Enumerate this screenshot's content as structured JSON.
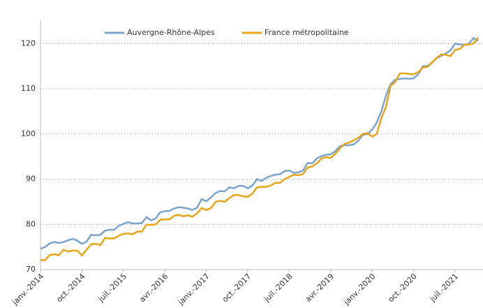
{
  "chart_data": {
    "type": "line",
    "categories": [
      "janv.-2014",
      null,
      null,
      null,
      null,
      null,
      null,
      null,
      null,
      "oct.-2014",
      null,
      null,
      null,
      null,
      null,
      null,
      null,
      null,
      "juil.-2015",
      null,
      null,
      null,
      null,
      null,
      null,
      null,
      null,
      "avr.-2016",
      null,
      null,
      null,
      null,
      null,
      null,
      null,
      null,
      "janv.-2017",
      null,
      null,
      null,
      null,
      null,
      null,
      null,
      null,
      "oct.-2017",
      null,
      null,
      null,
      null,
      null,
      null,
      null,
      null,
      "juil.-2018",
      null,
      null,
      null,
      null,
      null,
      null,
      null,
      null,
      "avr.-2019",
      null,
      null,
      null,
      null,
      null,
      null,
      null,
      null,
      "janv.-2020",
      null,
      null,
      null,
      null,
      null,
      null,
      null,
      null,
      "oct.-2020",
      null,
      null,
      null,
      null,
      null,
      null,
      null,
      null,
      "juil.-2021",
      null,
      null,
      null,
      null,
      null
    ],
    "series": [
      {
        "name": "Auvergne-Rhône-Alpes",
        "color": "#7ba3cc",
        "values": [
          74.6,
          75.0,
          75.8,
          76.1,
          75.9,
          76.1,
          76.5,
          76.8,
          76.4,
          75.7,
          76.2,
          77.7,
          77.6,
          77.7,
          78.6,
          78.8,
          78.8,
          79.7,
          80.1,
          80.5,
          80.2,
          80.2,
          80.3,
          81.6,
          80.9,
          81.3,
          82.7,
          82.9,
          83.0,
          83.5,
          83.8,
          83.7,
          83.5,
          83.2,
          83.7,
          85.6,
          85.1,
          86.0,
          86.9,
          87.4,
          87.3,
          88.2,
          88.0,
          88.5,
          88.5,
          88.0,
          88.6,
          90.0,
          89.6,
          90.3,
          90.7,
          91.0,
          91.1,
          91.8,
          91.9,
          91.4,
          91.5,
          91.9,
          93.6,
          93.5,
          94.6,
          95.1,
          95.4,
          95.5,
          96.2,
          97.3,
          97.5,
          97.5,
          97.7,
          98.5,
          99.8,
          100.0,
          101.0,
          102.5,
          105.0,
          108.5,
          111.0,
          112.0,
          112.2,
          112.3,
          112.2,
          112.3,
          113.2,
          115.0,
          115.0,
          115.8,
          116.8,
          117.3,
          117.8,
          118.5,
          120.0,
          119.8,
          119.7,
          120.0,
          121.2,
          120.6
        ]
      },
      {
        "name": "France métropolitaine",
        "color": "#e8a517",
        "values": [
          72.1,
          72.1,
          73.2,
          73.4,
          73.2,
          74.4,
          74.0,
          74.2,
          74.2,
          73.1,
          74.4,
          75.6,
          75.7,
          75.4,
          77.0,
          76.9,
          76.9,
          77.5,
          77.9,
          78.0,
          77.8,
          78.4,
          78.4,
          79.9,
          79.9,
          80.0,
          81.0,
          81.1,
          81.1,
          81.9,
          82.1,
          81.8,
          82.0,
          81.7,
          82.5,
          83.6,
          83.2,
          83.6,
          85.0,
          85.2,
          85.0,
          85.8,
          86.5,
          86.5,
          86.2,
          86.1,
          86.8,
          88.2,
          88.3,
          88.3,
          88.6,
          89.2,
          89.2,
          90.0,
          90.5,
          91.0,
          90.9,
          91.1,
          92.6,
          92.8,
          93.5,
          94.6,
          94.9,
          94.7,
          95.6,
          96.8,
          97.8,
          98.1,
          98.6,
          99.2,
          100.0,
          100.2,
          99.4,
          100.0,
          103.5,
          106.0,
          110.6,
          111.5,
          113.4,
          113.4,
          113.3,
          113.2,
          113.7,
          114.7,
          114.8,
          115.8,
          116.8,
          117.6,
          117.5,
          117.2,
          118.6,
          118.8,
          119.7,
          119.8,
          120.0,
          121.3
        ]
      }
    ],
    "ylim": [
      70,
      125
    ],
    "yticks": [
      70,
      80,
      90,
      100,
      110,
      120
    ],
    "grid": true
  }
}
